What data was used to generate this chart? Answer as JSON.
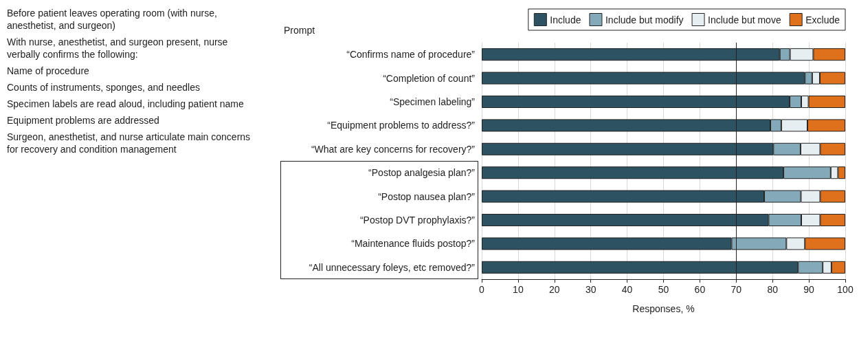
{
  "chart_data": {
    "type": "bar",
    "orientation": "horizontal",
    "stacked": true,
    "ylabel": "Prompt",
    "xlabel": "Responses, %",
    "categories": [
      "“Confirms name of procedure”",
      "“Completion of count”",
      "“Specimen labeling”",
      "“Equipment problems to address?”",
      "“What are key concerns for recovery?”",
      "“Postop analgesia plan?”",
      "“Postop nausea plan?”",
      "“Postop DVT prophylaxis?”",
      "“Maintenance fluids postop?”",
      "“All unnecessary foleys, etc removed?”"
    ],
    "series": [
      {
        "name": "Include",
        "color": "#2d5362",
        "values": [
          82.0,
          88.9,
          84.7,
          79.4,
          80.2,
          83.0,
          77.7,
          78.9,
          68.7,
          87.0
        ]
      },
      {
        "name": "Include but modify",
        "color": "#84a9b8",
        "values": [
          2.8,
          2.0,
          3.2,
          3.0,
          7.5,
          13.0,
          10.1,
          9.0,
          15.1,
          6.8
        ]
      },
      {
        "name": "Include but move",
        "color": "#e6eef1",
        "values": [
          6.4,
          2.1,
          2.0,
          7.2,
          5.4,
          2.0,
          5.3,
          5.2,
          5.1,
          2.4
        ]
      },
      {
        "name": "Exclude",
        "color": "#e0711c",
        "values": [
          8.8,
          7.0,
          10.1,
          10.4,
          6.9,
          2.0,
          6.9,
          6.9,
          11.1,
          3.8
        ]
      }
    ],
    "xlim": [
      0,
      100
    ],
    "xticks": [
      0,
      10,
      20,
      30,
      40,
      50,
      60,
      70,
      80,
      90,
      100
    ],
    "grid": "x",
    "legend": "top right",
    "ref_lines": [
      {
        "axis": "x",
        "value": 70,
        "color": "#222222"
      }
    ],
    "annotations": [
      "Before patient leaves operating room (with nurse, anesthetist, and surgeon)",
      "With nurse, anesthetist, and surgeon present, nurse verbally confirms the following:",
      "Name of procedure",
      "Counts of instruments, sponges, and needles",
      "Specimen labels are read aloud, including patient name",
      "Equipment problems are addressed",
      "Surgeon, anesthetist, and nurse articulate main concerns for recovery and condition management"
    ]
  }
}
